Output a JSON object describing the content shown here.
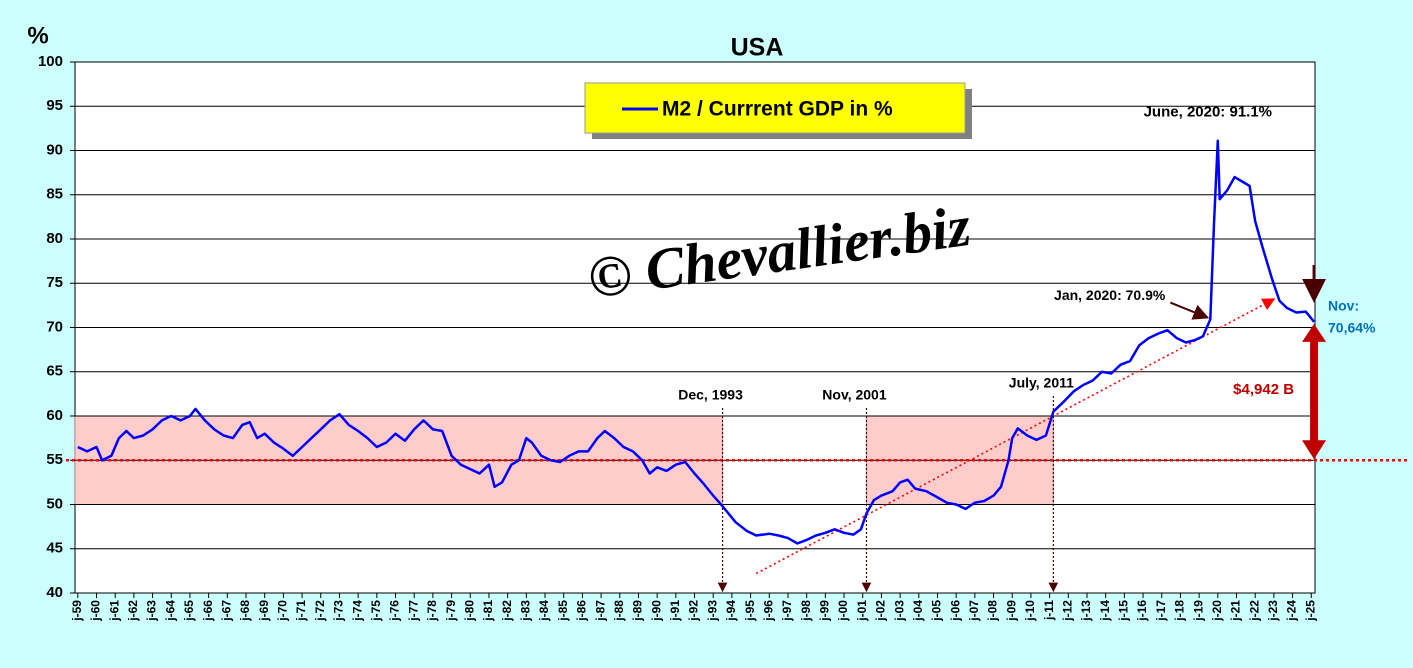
{
  "chart_data": {
    "type": "line",
    "title": "USA",
    "y_axis_label": "%",
    "watermark": "© Chevallier.biz",
    "background": "#ccffff",
    "grid": true,
    "xlim": [
      1958.85,
      2025.2
    ],
    "ylim": [
      40,
      100
    ],
    "yticks": [
      40,
      45,
      50,
      55,
      60,
      65,
      70,
      75,
      80,
      85,
      90,
      95,
      100
    ],
    "xticks": [
      {
        "value": 1959,
        "label": "j-59"
      },
      {
        "value": 1960,
        "label": "j-60"
      },
      {
        "value": 1961,
        "label": "j-61"
      },
      {
        "value": 1962,
        "label": "j-62"
      },
      {
        "value": 1963,
        "label": "j-63"
      },
      {
        "value": 1964,
        "label": "j-64"
      },
      {
        "value": 1965,
        "label": "j-65"
      },
      {
        "value": 1966,
        "label": "j-66"
      },
      {
        "value": 1967,
        "label": "j-67"
      },
      {
        "value": 1968,
        "label": "j-68"
      },
      {
        "value": 1969,
        "label": "j-69"
      },
      {
        "value": 1970,
        "label": "j-70"
      },
      {
        "value": 1971,
        "label": "j-71"
      },
      {
        "value": 1972,
        "label": "j-72"
      },
      {
        "value": 1973,
        "label": "j-73"
      },
      {
        "value": 1974,
        "label": "j-74"
      },
      {
        "value": 1975,
        "label": "j-75"
      },
      {
        "value": 1976,
        "label": "j-76"
      },
      {
        "value": 1977,
        "label": "j-77"
      },
      {
        "value": 1978,
        "label": "j-78"
      },
      {
        "value": 1979,
        "label": "j-79"
      },
      {
        "value": 1980,
        "label": "j-80"
      },
      {
        "value": 1981,
        "label": "j-81"
      },
      {
        "value": 1982,
        "label": "j-82"
      },
      {
        "value": 1983,
        "label": "j-83"
      },
      {
        "value": 1984,
        "label": "j-84"
      },
      {
        "value": 1985,
        "label": "j-85"
      },
      {
        "value": 1986,
        "label": "j-86"
      },
      {
        "value": 1987,
        "label": "j-87"
      },
      {
        "value": 1988,
        "label": "j-88"
      },
      {
        "value": 1989,
        "label": "j-89"
      },
      {
        "value": 1990,
        "label": "j-90"
      },
      {
        "value": 1991,
        "label": "j-91"
      },
      {
        "value": 1992,
        "label": "j-92"
      },
      {
        "value": 1993,
        "label": "j-93"
      },
      {
        "value": 1994,
        "label": "j-94"
      },
      {
        "value": 1995,
        "label": "j-95"
      },
      {
        "value": 1996,
        "label": "j-96"
      },
      {
        "value": 1997,
        "label": "j-97"
      },
      {
        "value": 1998,
        "label": "j-98"
      },
      {
        "value": 1999,
        "label": "j-99"
      },
      {
        "value": 2000,
        "label": "j-00"
      },
      {
        "value": 2001,
        "label": "j-01"
      },
      {
        "value": 2002,
        "label": "j-02"
      },
      {
        "value": 2003,
        "label": "j-03"
      },
      {
        "value": 2004,
        "label": "j-04"
      },
      {
        "value": 2005,
        "label": "j-05"
      },
      {
        "value": 2006,
        "label": "j-06"
      },
      {
        "value": 2007,
        "label": "j-07"
      },
      {
        "value": 2008,
        "label": "j-08"
      },
      {
        "value": 2009,
        "label": "j-09"
      },
      {
        "value": 2010,
        "label": "j-10"
      },
      {
        "value": 2011,
        "label": "j-11"
      },
      {
        "value": 2012,
        "label": "j-12"
      },
      {
        "value": 2013,
        "label": "j-13"
      },
      {
        "value": 2014,
        "label": "j-14"
      },
      {
        "value": 2015,
        "label": "j-15"
      },
      {
        "value": 2016,
        "label": "j-16"
      },
      {
        "value": 2017,
        "label": "j-17"
      },
      {
        "value": 2018,
        "label": "j-18"
      },
      {
        "value": 2019,
        "label": "j-19"
      },
      {
        "value": 2020,
        "label": "j-20"
      },
      {
        "value": 2021,
        "label": "j-21"
      },
      {
        "value": 2022,
        "label": "j-22"
      },
      {
        "value": 2023,
        "label": "j-23"
      },
      {
        "value": 2024,
        "label": "j-24"
      },
      {
        "value": 2025,
        "label": "j-25"
      }
    ],
    "x": [
      1959,
      1959.5,
      1960,
      1960.3,
      1960.8,
      1961.2,
      1961.6,
      1962,
      1962.5,
      1963,
      1963.5,
      1964,
      1964.5,
      1965,
      1965.3,
      1965.8,
      1966.3,
      1966.8,
      1967.3,
      1967.8,
      1968.2,
      1968.6,
      1969,
      1969.5,
      1970,
      1970.5,
      1971,
      1971.5,
      1972,
      1972.5,
      1973,
      1973.5,
      1974,
      1974.5,
      1975,
      1975.5,
      1976,
      1976.5,
      1977,
      1977.5,
      1978,
      1978.5,
      1979,
      1979.5,
      1980,
      1980.5,
      1981,
      1981.3,
      1981.7,
      1982.2,
      1982.6,
      1983,
      1983.3,
      1983.8,
      1984.3,
      1984.8,
      1985.3,
      1985.8,
      1986.3,
      1986.8,
      1987.2,
      1987.7,
      1988.2,
      1988.7,
      1989.2,
      1989.6,
      1990,
      1990.5,
      1991,
      1991.5,
      1992,
      1992.5,
      1993,
      1993.5,
      1994.2,
      1994.8,
      1995.3,
      1996,
      1996.5,
      1997,
      1997.5,
      1998,
      1998.5,
      1999,
      1999.5,
      2000,
      2000.5,
      2000.9,
      2001.2,
      2001.6,
      2002,
      2002.6,
      2003,
      2003.4,
      2003.8,
      2004.4,
      2005,
      2005.5,
      2006,
      2006.5,
      2007,
      2007.5,
      2008,
      2008.4,
      2008.8,
      2009,
      2009.3,
      2009.8,
      2010.3,
      2010.8,
      2011.2,
      2011.7,
      2012.3,
      2012.8,
      2013.3,
      2013.8,
      2014.3,
      2014.8,
      2015.3,
      2015.8,
      2016.3,
      2016.8,
      2017.3,
      2017.8,
      2018.3,
      2018.8,
      2019.2,
      2019.6,
      2019.8,
      2020,
      2020.1,
      2020.5,
      2020.9,
      2021.3,
      2021.7,
      2022,
      2022.4,
      2022.9,
      2023.3,
      2023.7,
      2024.2,
      2024.7,
      2025.15
    ],
    "series": [
      {
        "name": "M2 / Currrent GDP in %",
        "color": "#0000ff",
        "values": [
          56.5,
          56,
          56.5,
          55,
          55.5,
          57.5,
          58.3,
          57.5,
          57.8,
          58.5,
          59.5,
          60,
          59.5,
          60,
          60.8,
          59.5,
          58.5,
          57.8,
          57.5,
          59,
          59.3,
          57.5,
          58,
          57,
          56.3,
          55.5,
          56.5,
          57.5,
          58.5,
          59.5,
          60.2,
          59,
          58.3,
          57.5,
          56.5,
          57,
          58,
          57.2,
          58.5,
          59.5,
          58.5,
          58.3,
          55.5,
          54.5,
          54,
          53.5,
          54.5,
          52,
          52.5,
          54.5,
          55,
          57.5,
          57,
          55.5,
          55,
          54.8,
          55.5,
          56,
          56,
          57.5,
          58.3,
          57.5,
          56.5,
          56,
          55,
          53.5,
          54.2,
          53.8,
          54.5,
          54.8,
          53.5,
          52.3,
          51,
          49.8,
          48,
          47,
          46.5,
          46.7,
          46.5,
          46.2,
          45.6,
          46,
          46.5,
          46.8,
          47.2,
          46.8,
          46.6,
          47.2,
          49,
          50.5,
          51,
          51.5,
          52.5,
          52.8,
          51.8,
          51.5,
          50.8,
          50.2,
          50,
          49.5,
          50.2,
          50.4,
          51,
          52,
          55,
          57.5,
          58.6,
          57.8,
          57.3,
          57.8,
          60.5,
          61.5,
          62.8,
          63.5,
          64,
          65,
          64.8,
          65.8,
          66.2,
          68,
          68.8,
          69.3,
          69.7,
          68.8,
          68.3,
          68.6,
          69,
          70.9,
          82,
          91.1,
          84.5,
          85.5,
          87,
          86.5,
          86,
          82,
          79,
          75.5,
          73,
          72.2,
          71.7,
          71.8,
          70.64
        ]
      }
    ],
    "bands": [
      {
        "x": [
          1958.85,
          1993.5
        ],
        "y": [
          50,
          60
        ],
        "color": "#ffcccc"
      },
      {
        "x": [
          2001.2,
          2011.2
        ],
        "y": [
          50,
          60
        ],
        "color": "#ffcccc"
      }
    ],
    "reference_line": {
      "value": 55,
      "color": "#ff0000"
    },
    "trend": {
      "x": [
        1995.3,
        2023.0
      ],
      "y": [
        42.2,
        73.2
      ],
      "color": "#ff0000"
    },
    "point_labels": [
      {
        "text": "June, 2020: 91.1%",
        "x": 2020.0,
        "y": 91.1
      },
      {
        "text": "Jan, 2020: 70.9%",
        "x": 2019.6,
        "y": 70.9
      }
    ],
    "date_markers": [
      {
        "text": "Dec, 1993",
        "x": 1993.5
      },
      {
        "text": "Nov, 2001",
        "x": 2001.2
      },
      {
        "text": "July, 2011",
        "x": 2011.2
      }
    ],
    "end_label": [
      "Nov:",
      "70,64%"
    ],
    "gap_label": "$4,942 B"
  }
}
